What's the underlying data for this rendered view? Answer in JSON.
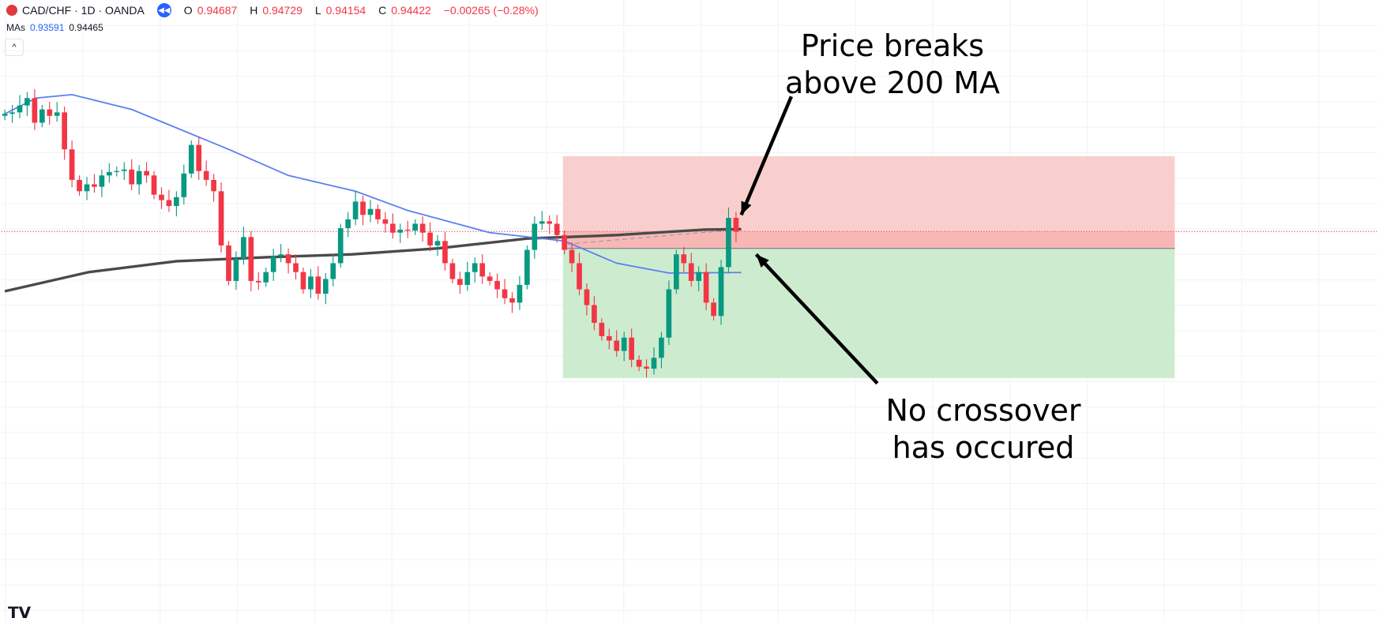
{
  "header": {
    "symbol": "CAD/CHF · 1D · OANDA",
    "open_label": "O",
    "open": "0.94687",
    "high_label": "H",
    "high": "0.94729",
    "low_label": "L",
    "low": "0.94154",
    "close_label": "C",
    "close": "0.94422",
    "change": "−0.00265 (−0.28%)"
  },
  "mas": {
    "label": "MAs",
    "ma1": "0.93591",
    "ma2": "0.94465"
  },
  "collapse_icon": "^",
  "logo": "TV",
  "annotations": {
    "top": [
      "Price breaks",
      "above 200 MA"
    ],
    "bottom": [
      "No crossover",
      "has occured"
    ]
  },
  "colors": {
    "up": "#089981",
    "down": "#f23645",
    "ma_fast": "#5b7ff0",
    "ma_slow": "#4a4a4a",
    "stop_zone": "#f9cfcd",
    "target_zone": "#cdeccf"
  },
  "chart_data": {
    "type": "candlestick",
    "title": "CAD/CHF · 1D · OANDA",
    "ylim": [
      0.865,
      0.9912
    ],
    "first_open": 0.9677,
    "close": [
      0.9681,
      0.9684,
      0.9698,
      0.9713,
      0.9663,
      0.969,
      0.9677,
      0.9684,
      0.9609,
      0.9547,
      0.9524,
      0.9538,
      0.9533,
      0.9556,
      0.9563,
      0.9565,
      0.9568,
      0.9538,
      0.9565,
      0.9556,
      0.9517,
      0.9506,
      0.9494,
      0.9512,
      0.956,
      0.9618,
      0.9565,
      0.9547,
      0.9524,
      0.9414,
      0.9342,
      0.9387,
      0.9431,
      0.9342,
      0.9339,
      0.936,
      0.9392,
      0.9396,
      0.9378,
      0.936,
      0.9325,
      0.9351,
      0.9316,
      0.9346,
      0.9378,
      0.9449,
      0.9467,
      0.9503,
      0.9476,
      0.9488,
      0.9467,
      0.9458,
      0.944,
      0.9446,
      0.9444,
      0.9458,
      0.944,
      0.9414,
      0.9423,
      0.9378,
      0.9346,
      0.9334,
      0.936,
      0.9378,
      0.9351,
      0.9342,
      0.9325,
      0.9307,
      0.9298,
      0.9334,
      0.9405,
      0.9458,
      0.9463,
      0.9458,
      0.9435,
      0.9405,
      0.9378,
      0.9325,
      0.9293,
      0.9257,
      0.923,
      0.9221,
      0.92,
      0.9227,
      0.9182,
      0.9168,
      0.9164,
      0.9186,
      0.9227,
      0.9325,
      0.9396,
      0.9378,
      0.9342,
      0.936,
      0.9298,
      0.9271,
      0.937,
      0.947,
      0.9442
    ],
    "ma_fast": [
      [
        0,
        0.9681
      ],
      [
        4.2,
        0.9713
      ],
      [
        9,
        0.972
      ],
      [
        17,
        0.969
      ],
      [
        30,
        0.9609
      ],
      [
        38,
        0.9556
      ],
      [
        47,
        0.9524
      ],
      [
        54,
        0.9485
      ],
      [
        65,
        0.944
      ],
      [
        75,
        0.9423
      ],
      [
        82,
        0.9378
      ],
      [
        89,
        0.9358
      ],
      [
        98.7,
        0.9359
      ]
    ],
    "ma_slow": [
      [
        0,
        0.9321
      ],
      [
        11.3,
        0.936
      ],
      [
        23,
        0.9382
      ],
      [
        35,
        0.939
      ],
      [
        46.6,
        0.9396
      ],
      [
        58,
        0.9408
      ],
      [
        70,
        0.9428
      ],
      [
        82,
        0.9435
      ],
      [
        93.6,
        0.9446
      ],
      [
        98.7,
        0.9447
      ]
    ],
    "last_price": 0.94422,
    "position": {
      "type": "long",
      "start_index": 74.8,
      "end_index": 156.8,
      "stop": 0.9595,
      "entry": 0.9408,
      "target": 0.9145
    }
  }
}
